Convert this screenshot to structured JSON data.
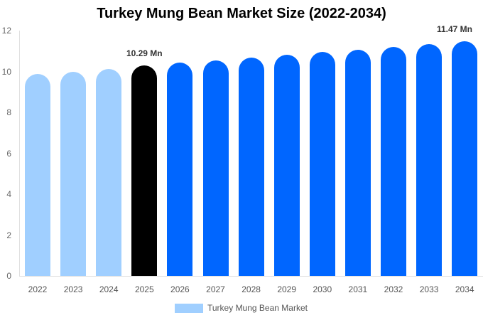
{
  "chart_data": {
    "type": "bar",
    "title": "Turkey Mung Bean Market Size (2022-2034)",
    "xlabel": "",
    "ylabel": "",
    "ylim": [
      0,
      12
    ],
    "yticks": [
      0,
      2,
      4,
      6,
      8,
      10,
      12
    ],
    "grid": false,
    "legend_position": "bottom",
    "categories": [
      "2022",
      "2023",
      "2024",
      "2025",
      "2026",
      "2027",
      "2028",
      "2029",
      "2030",
      "2031",
      "2032",
      "2033",
      "2034"
    ],
    "series": [
      {
        "name": "Turkey Mung Bean Market",
        "values": [
          9.88,
          10.0,
          10.12,
          10.29,
          10.42,
          10.55,
          10.68,
          10.81,
          10.94,
          11.07,
          11.2,
          11.33,
          11.47
        ],
        "colors": [
          "#a0cfff",
          "#a0cfff",
          "#a0cfff",
          "#000000",
          "#0066ff",
          "#0066ff",
          "#0066ff",
          "#0066ff",
          "#0066ff",
          "#0066ff",
          "#0066ff",
          "#0066ff",
          "#0066ff"
        ]
      }
    ],
    "annotations": [
      {
        "category": "2025",
        "text": "10.29 Mn"
      },
      {
        "category": "2034",
        "text": "11.47 Mn"
      }
    ]
  },
  "legend": {
    "label": "Turkey Mung Bean Market",
    "color": "#a0cfff"
  }
}
